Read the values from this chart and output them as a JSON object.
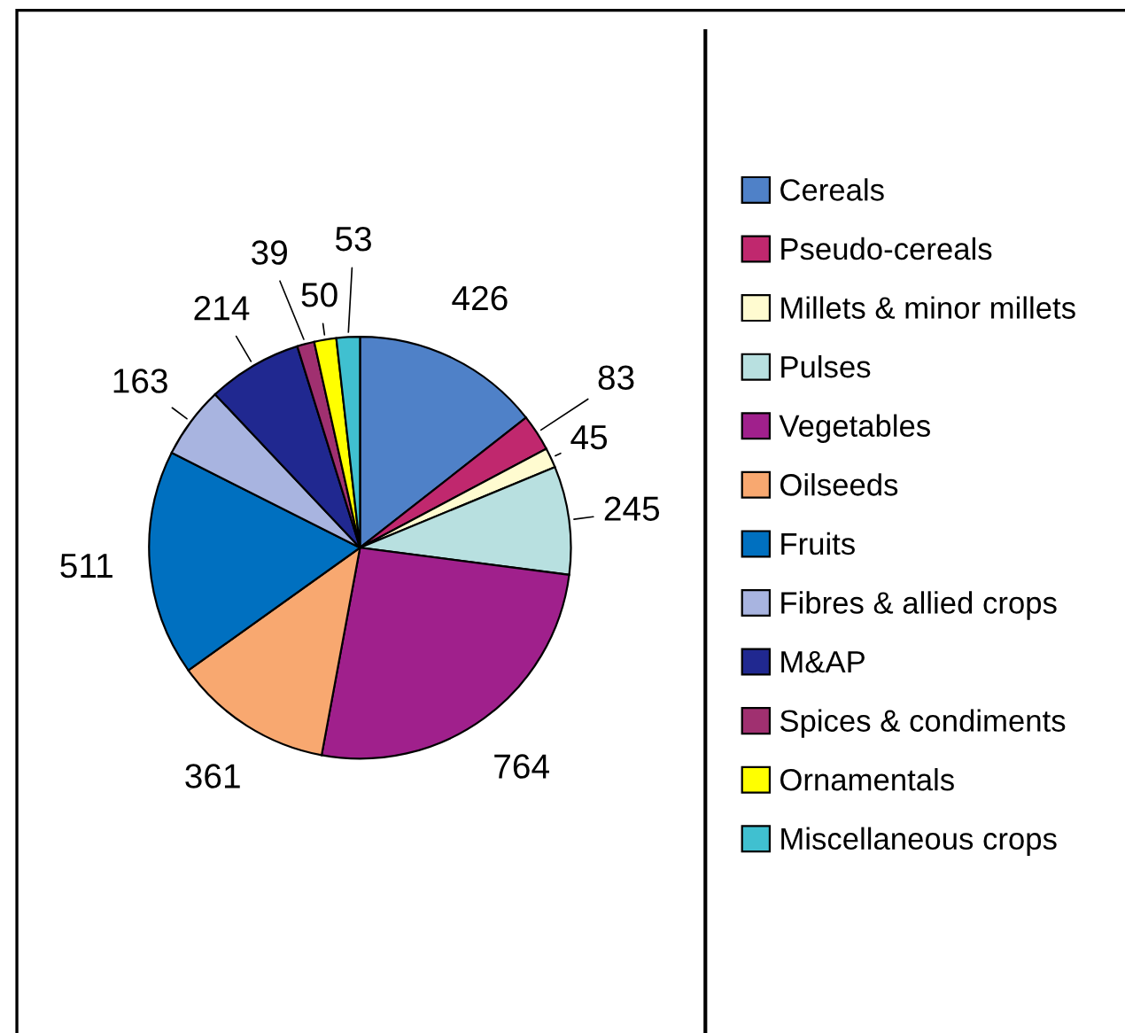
{
  "chart_data": {
    "type": "pie",
    "categories": [
      "Cereals",
      "Pseudo-cereals",
      "Millets & minor millets",
      "Pulses",
      "Vegetables",
      "Oilseeds",
      "Fruits",
      "Fibres & allied crops",
      "M&AP",
      "Spices & condiments",
      "Ornamentals",
      "Miscellaneous crops"
    ],
    "values": [
      426,
      83,
      45,
      245,
      764,
      361,
      511,
      163,
      214,
      39,
      50,
      53
    ],
    "colors": [
      "#4f81c8",
      "#c0286e",
      "#fffbd0",
      "#b8e0e0",
      "#a0208c",
      "#f8a870",
      "#0070c0",
      "#a8b4e0",
      "#202890",
      "#a03070",
      "#ffff00",
      "#40c0d0"
    ],
    "data_labels": true,
    "legend": "right"
  }
}
